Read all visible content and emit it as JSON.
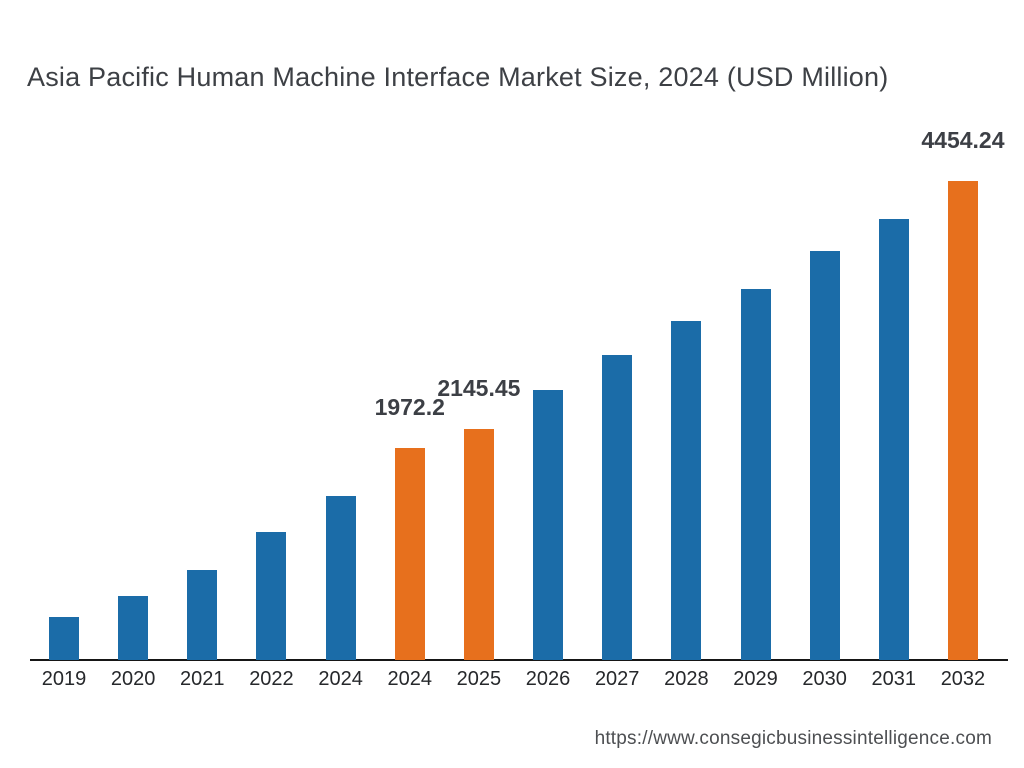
{
  "chart_data": {
    "type": "bar",
    "title": "Asia Pacific Human Machine Interface Market Size, 2024 (USD Million)",
    "unit": "USD Million",
    "xlabel": "",
    "ylabel": "",
    "ylim": [
      0,
      4800
    ],
    "grid": false,
    "legend": "none",
    "categories": [
      "2019",
      "2020",
      "2021",
      "2022",
      "2024",
      "2024",
      "2025",
      "2026",
      "2027",
      "2028",
      "2029",
      "2030",
      "2031",
      "2032"
    ],
    "values": [
      400,
      595,
      840,
      1190,
      1525,
      1972.2,
      2145.45,
      2510,
      2840,
      3150,
      3450,
      3800,
      4100,
      4454.24
    ],
    "highlighted_indices": [
      5,
      6,
      13
    ],
    "data_labels": {
      "5": "1972.2",
      "6": "2145.45",
      "13": "4454.24"
    },
    "bar_color": "#1B6CA8",
    "highlight_color": "#E7701D"
  },
  "footer": {
    "url": "https://www.consegicbusinessintelligence.com"
  }
}
